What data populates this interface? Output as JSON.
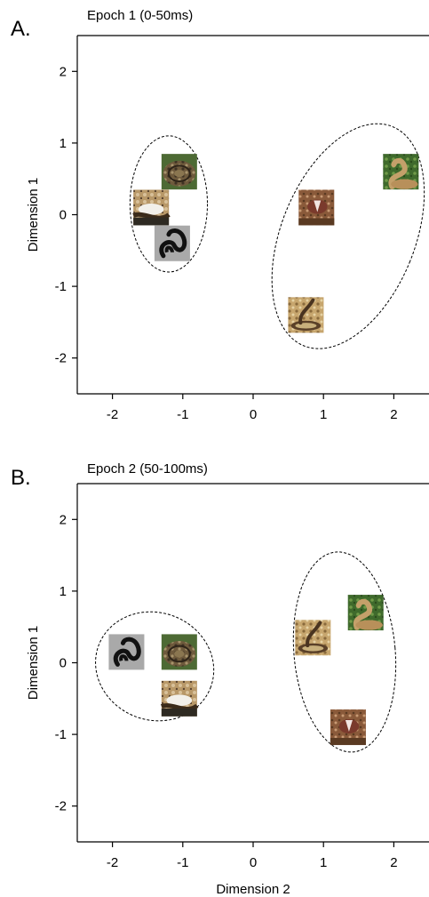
{
  "chart_data": [
    {
      "type": "scatter",
      "panel_label": "A.",
      "title": "Epoch 1 (0-50ms)",
      "xlabel": "",
      "ylabel": "Dimension 1",
      "xlim": [
        -2.5,
        2.5
      ],
      "ylim": [
        -2.5,
        2.5
      ],
      "xticks": [
        -2,
        -1,
        0,
        1,
        2
      ],
      "yticks": [
        -2,
        -1,
        0,
        1,
        2
      ],
      "grid": false,
      "points": [
        {
          "x": -1.05,
          "y": 0.6,
          "icon": "coiled-snake-icon"
        },
        {
          "x": -1.45,
          "y": 0.1,
          "icon": "snake-on-rock-icon"
        },
        {
          "x": -1.15,
          "y": -0.4,
          "icon": "black-snake-icon"
        },
        {
          "x": 0.9,
          "y": 0.1,
          "icon": "snake-in-hand-icon"
        },
        {
          "x": 2.1,
          "y": 0.6,
          "icon": "striking-snake-icon"
        },
        {
          "x": 0.75,
          "y": -1.4,
          "icon": "rearing-snake-icon"
        }
      ],
      "clusters": [
        {
          "cx": -1.2,
          "cy": 0.15,
          "rx": 0.55,
          "ry": 0.95,
          "angle": 0
        },
        {
          "cx": 1.35,
          "cy": -0.3,
          "rx": 0.95,
          "ry": 1.65,
          "angle": 22
        }
      ]
    },
    {
      "type": "scatter",
      "panel_label": "B.",
      "title": "Epoch 2 (50-100ms)",
      "xlabel": "Dimension 2",
      "ylabel": "Dimension 1",
      "xlim": [
        -2.5,
        2.5
      ],
      "ylim": [
        -2.5,
        2.5
      ],
      "xticks": [
        -2,
        -1,
        0,
        1,
        2
      ],
      "yticks": [
        -2,
        -1,
        0,
        1,
        2
      ],
      "grid": false,
      "points": [
        {
          "x": -1.8,
          "y": 0.15,
          "icon": "black-snake-icon"
        },
        {
          "x": -1.05,
          "y": 0.15,
          "icon": "coiled-snake-icon"
        },
        {
          "x": -1.05,
          "y": -0.5,
          "icon": "snake-on-rock-icon"
        },
        {
          "x": 0.85,
          "y": 0.35,
          "icon": "rearing-snake-icon"
        },
        {
          "x": 1.6,
          "y": 0.7,
          "icon": "striking-snake-icon"
        },
        {
          "x": 1.35,
          "y": -0.9,
          "icon": "snake-in-hand-icon"
        }
      ],
      "clusters": [
        {
          "cx": -1.4,
          "cy": -0.05,
          "rx": 0.85,
          "ry": 0.75,
          "angle": 20
        },
        {
          "cx": 1.3,
          "cy": 0.15,
          "rx": 0.72,
          "ry": 1.4,
          "angle": -5
        }
      ]
    }
  ]
}
